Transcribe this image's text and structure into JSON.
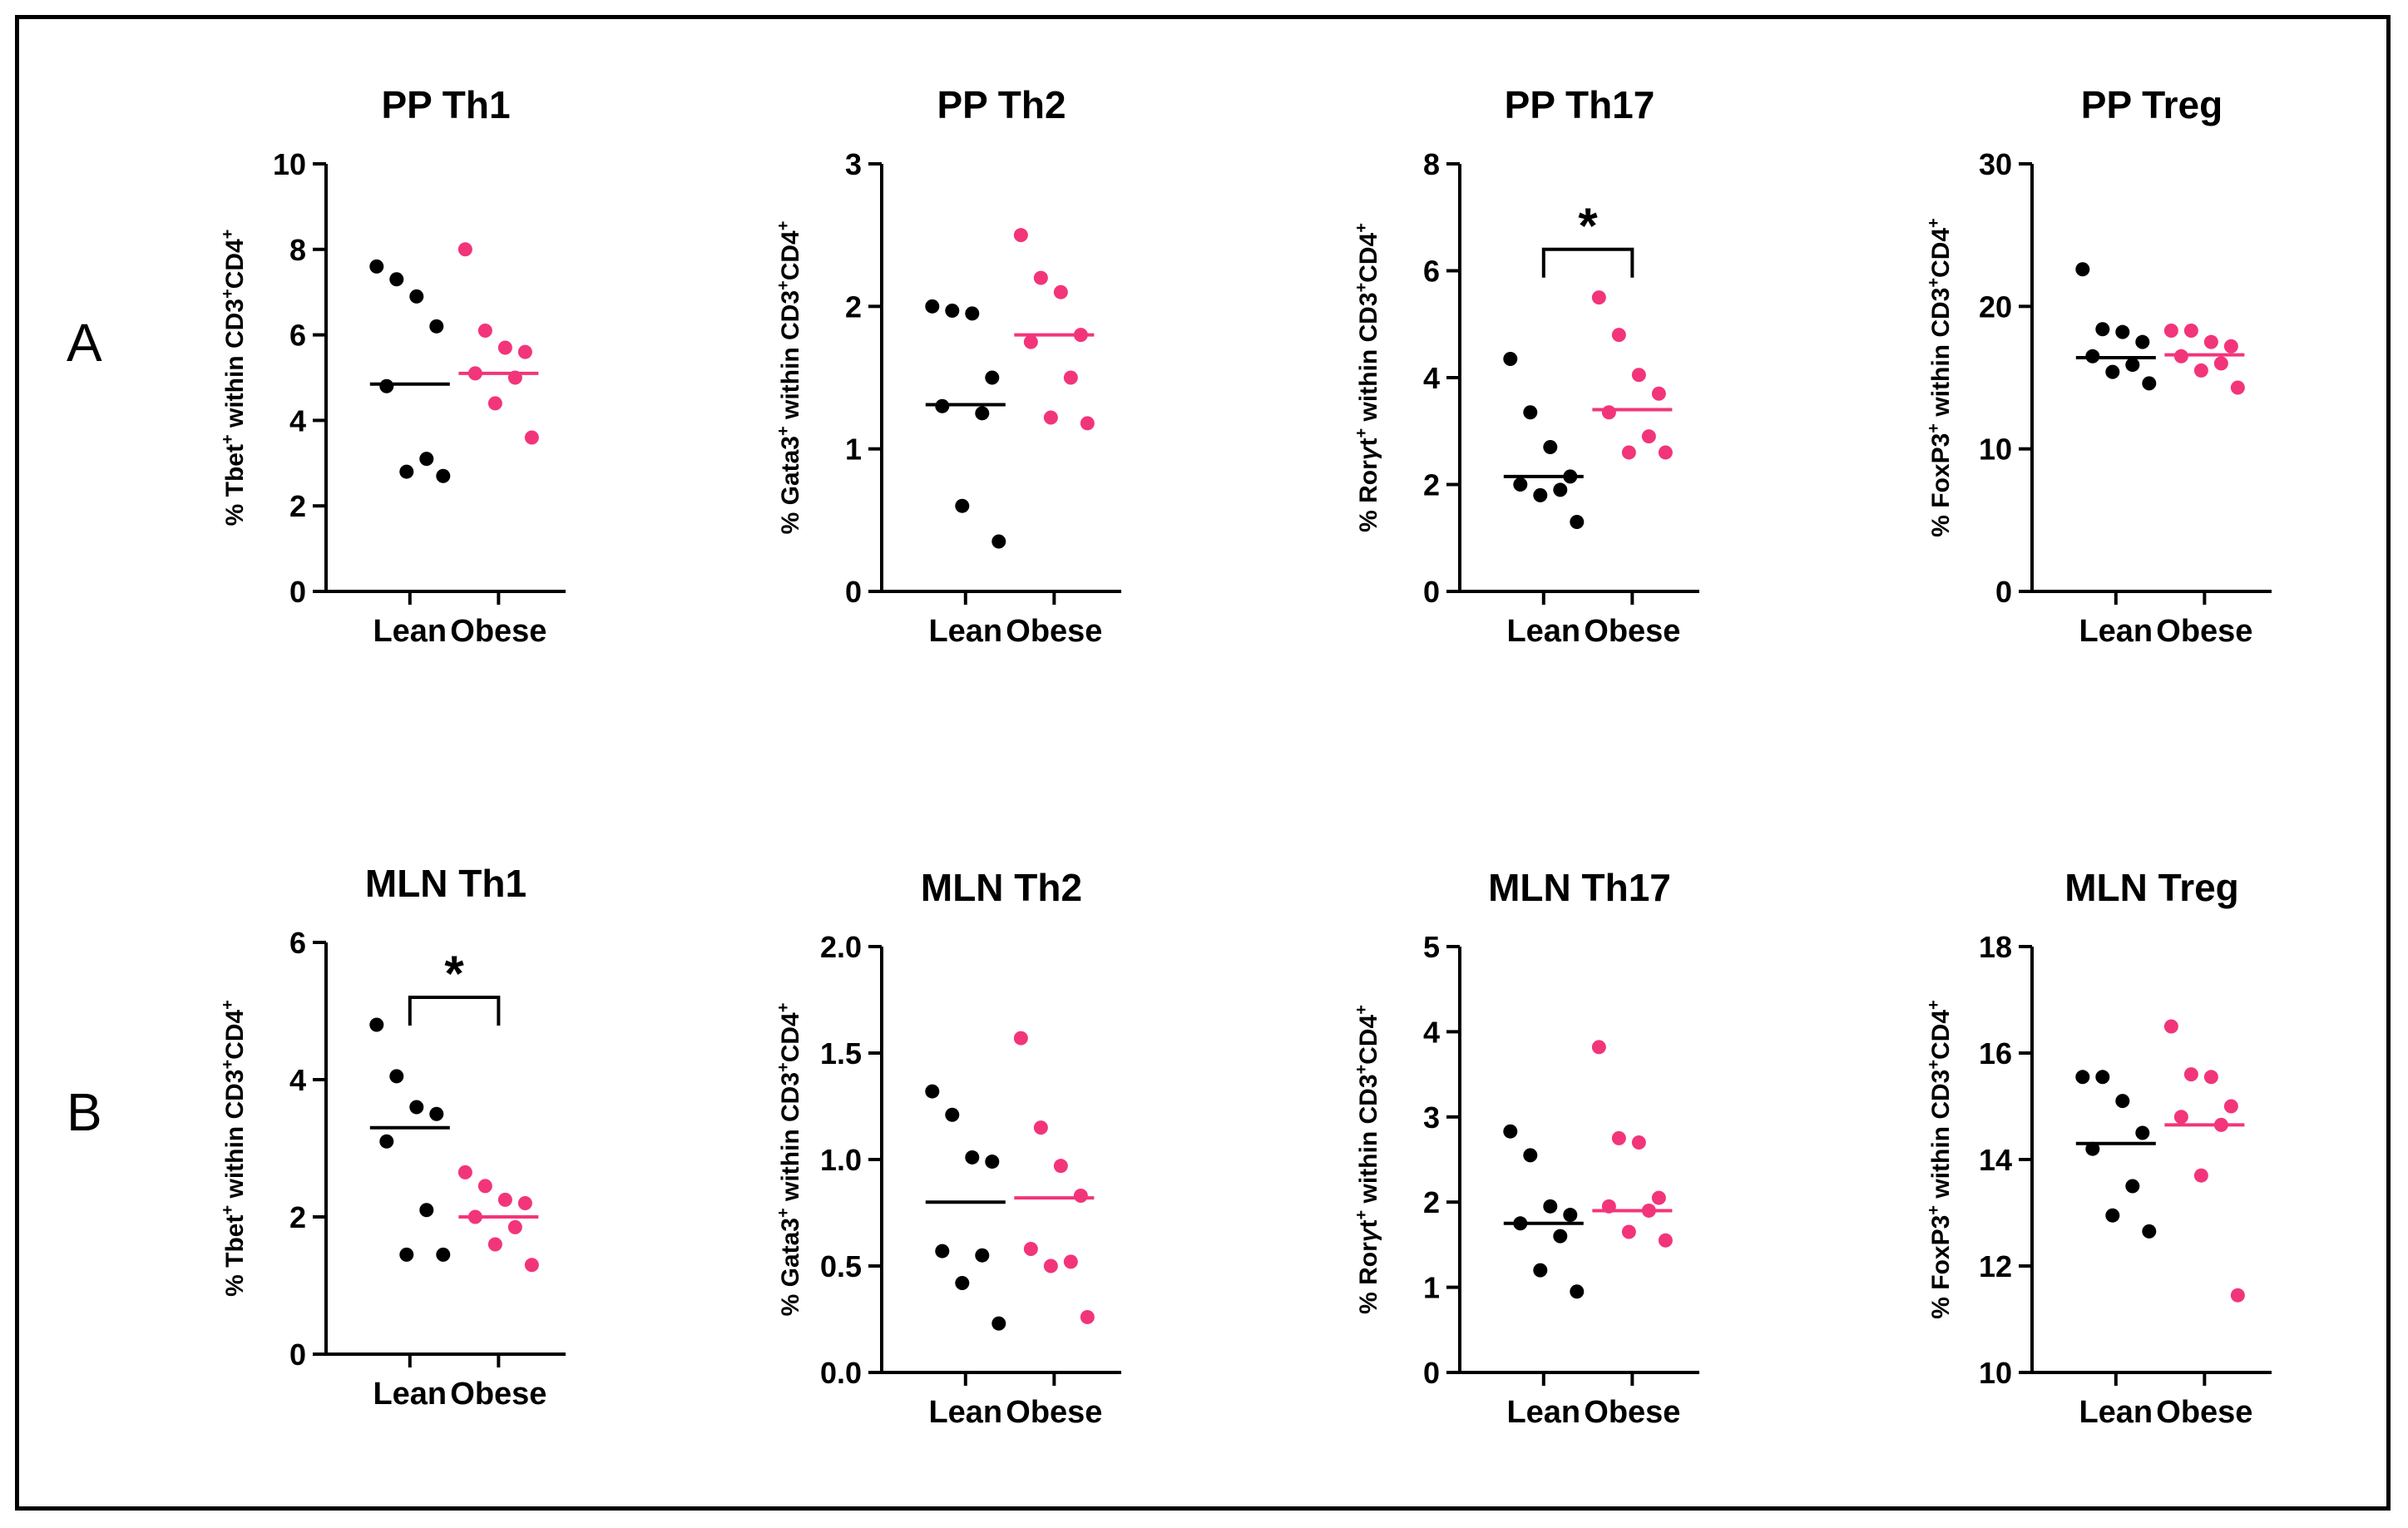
{
  "panel_labels": {
    "a": "A",
    "b": "B"
  },
  "colors": {
    "lean": "#000000",
    "obese": "#f2357a",
    "axis": "#000000"
  },
  "chart_data": [
    {
      "type": "scatter",
      "title": "PP Th1",
      "ylabel_pre": "% Tbet",
      "ylabel_post": " within CD3",
      "ylabel_tail": "CD4",
      "categories": [
        "Lean",
        "Obese"
      ],
      "ylim": [
        0,
        10
      ],
      "yticks": [
        0,
        2,
        4,
        6,
        8,
        10
      ],
      "tick_decimals": 0,
      "series": [
        {
          "name": "Lean",
          "values": [
            7.6,
            7.3,
            6.9,
            6.2,
            4.8,
            3.1,
            2.8,
            2.7
          ],
          "mean": 4.85
        },
        {
          "name": "Obese",
          "values": [
            8.0,
            6.1,
            5.7,
            5.6,
            5.1,
            5.0,
            4.4,
            3.6
          ],
          "mean": 5.1
        }
      ],
      "significance": null
    },
    {
      "type": "scatter",
      "title": "PP Th2",
      "ylabel_pre": "% Gata3",
      "ylabel_post": " within CD3",
      "ylabel_tail": "CD4",
      "categories": [
        "Lean",
        "Obese"
      ],
      "ylim": [
        0,
        3
      ],
      "yticks": [
        0,
        1,
        2,
        3
      ],
      "tick_decimals": 0,
      "series": [
        {
          "name": "Lean",
          "values": [
            2.0,
            1.97,
            1.95,
            1.5,
            1.3,
            1.25,
            0.6,
            0.35
          ],
          "mean": 1.31
        },
        {
          "name": "Obese",
          "values": [
            2.5,
            2.2,
            2.1,
            1.8,
            1.75,
            1.5,
            1.22,
            1.18
          ],
          "mean": 1.8
        }
      ],
      "significance": null
    },
    {
      "type": "scatter",
      "title": "PP Th17",
      "ylabel_pre": "% Ror",
      "ylabel_gamma": "γ",
      "ylabel_t": "t",
      "ylabel_post": " within CD3",
      "ylabel_tail": "CD4",
      "categories": [
        "Lean",
        "Obese"
      ],
      "ylim": [
        0,
        8
      ],
      "yticks": [
        0,
        2,
        4,
        6,
        8
      ],
      "tick_decimals": 0,
      "series": [
        {
          "name": "Lean",
          "values": [
            4.35,
            3.35,
            2.7,
            2.15,
            2.0,
            1.9,
            1.8,
            1.3
          ],
          "mean": 2.15
        },
        {
          "name": "Obese",
          "values": [
            5.5,
            4.8,
            4.05,
            3.7,
            3.35,
            2.9,
            2.6,
            2.6
          ],
          "mean": 3.4
        }
      ],
      "significance": {
        "label": "*",
        "bracket_y": 6.4
      }
    },
    {
      "type": "scatter",
      "title": "PP Treg",
      "ylabel_pre": "% FoxP3",
      "ylabel_post": " within CD3",
      "ylabel_tail": "CD4",
      "categories": [
        "Lean",
        "Obese"
      ],
      "ylim": [
        0,
        30
      ],
      "yticks": [
        0,
        10,
        20,
        30
      ],
      "tick_decimals": 0,
      "series": [
        {
          "name": "Lean",
          "values": [
            22.6,
            18.4,
            18.2,
            17.5,
            16.5,
            15.9,
            15.4,
            14.6
          ],
          "mean": 16.4
        },
        {
          "name": "Obese",
          "values": [
            18.3,
            18.3,
            17.5,
            17.2,
            16.5,
            16.0,
            15.5,
            14.3
          ],
          "mean": 16.6
        }
      ],
      "significance": null
    },
    {
      "type": "scatter",
      "title": "MLN Th1",
      "ylabel_pre": "% Tbet",
      "ylabel_post": " within CD3",
      "ylabel_tail": "CD4",
      "categories": [
        "Lean",
        "Obese"
      ],
      "ylim": [
        0,
        6
      ],
      "yticks": [
        0,
        2,
        4,
        6
      ],
      "tick_decimals": 0,
      "series": [
        {
          "name": "Lean",
          "values": [
            4.8,
            4.05,
            3.6,
            3.5,
            3.1,
            2.1,
            1.45,
            1.45
          ],
          "mean": 3.3
        },
        {
          "name": "Obese",
          "values": [
            2.65,
            2.45,
            2.25,
            2.2,
            2.0,
            1.85,
            1.6,
            1.3
          ],
          "mean": 2.0
        }
      ],
      "significance": {
        "label": "*",
        "bracket_y": 5.2
      }
    },
    {
      "type": "scatter",
      "title": "MLN Th2",
      "ylabel_pre": "% Gata3",
      "ylabel_post": " within CD3",
      "ylabel_tail": "CD4",
      "categories": [
        "Lean",
        "Obese"
      ],
      "ylim": [
        0,
        2
      ],
      "yticks": [
        0.0,
        0.5,
        1.0,
        1.5,
        2.0
      ],
      "tick_decimals": 1,
      "series": [
        {
          "name": "Lean",
          "values": [
            1.32,
            1.21,
            1.01,
            0.99,
            0.57,
            0.55,
            0.42,
            0.23
          ],
          "mean": 0.8
        },
        {
          "name": "Obese",
          "values": [
            1.57,
            1.15,
            0.97,
            0.83,
            0.58,
            0.52,
            0.5,
            0.26
          ],
          "mean": 0.82
        }
      ],
      "significance": null
    },
    {
      "type": "scatter",
      "title": "MLN Th17",
      "ylabel_pre": "% Ror",
      "ylabel_gamma": "γ",
      "ylabel_t": "t",
      "ylabel_post": " within CD3",
      "ylabel_tail": "CD4",
      "categories": [
        "Lean",
        "Obese"
      ],
      "ylim": [
        0,
        5
      ],
      "yticks": [
        0,
        1,
        2,
        3,
        4,
        5
      ],
      "tick_decimals": 0,
      "series": [
        {
          "name": "Lean",
          "values": [
            2.83,
            2.55,
            1.95,
            1.85,
            1.75,
            1.6,
            1.2,
            0.95
          ],
          "mean": 1.75
        },
        {
          "name": "Obese",
          "values": [
            3.82,
            2.75,
            2.7,
            2.05,
            1.95,
            1.9,
            1.65,
            1.55
          ],
          "mean": 1.9
        }
      ],
      "significance": null
    },
    {
      "type": "scatter",
      "title": "MLN Treg",
      "ylabel_pre": "% FoxP3",
      "ylabel_post": " within CD3",
      "ylabel_tail": "CD4",
      "categories": [
        "Lean",
        "Obese"
      ],
      "ylim": [
        10,
        18
      ],
      "yticks": [
        10,
        12,
        14,
        16,
        18
      ],
      "tick_decimals": 0,
      "series": [
        {
          "name": "Lean",
          "values": [
            15.55,
            15.55,
            15.1,
            14.5,
            14.2,
            13.5,
            12.95,
            12.65
          ],
          "mean": 14.3
        },
        {
          "name": "Obese",
          "values": [
            16.5,
            15.6,
            15.55,
            15.0,
            14.8,
            14.65,
            13.7,
            11.45
          ],
          "mean": 14.65
        }
      ],
      "significance": null
    }
  ]
}
